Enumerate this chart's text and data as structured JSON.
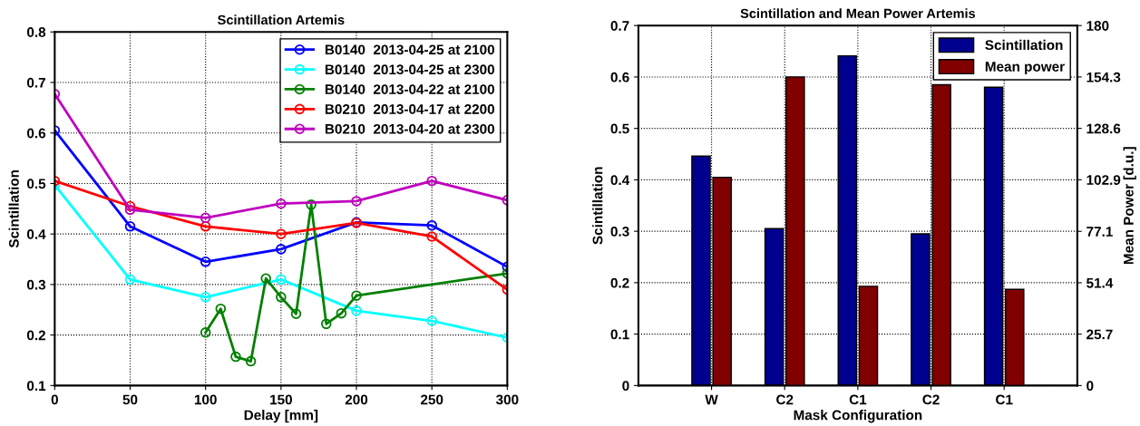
{
  "chart_data": [
    {
      "type": "line",
      "title": "Scintillation Artemis",
      "xlabel": "Delay [mm]",
      "ylabel": "Scintillation",
      "xlim": [
        0,
        300
      ],
      "xticks": [
        0,
        50,
        100,
        150,
        200,
        250,
        300
      ],
      "ylim": [
        0.1,
        0.8
      ],
      "yticks": [
        0.1,
        0.2,
        0.3,
        0.4,
        0.5,
        0.6,
        0.7,
        0.8
      ],
      "grid": true,
      "legend": "top right",
      "marker": "circle",
      "line_style": "solid",
      "series": [
        {
          "name": "B0140  2013-04-25 at 2100",
          "color": "#0000ff",
          "x": [
            0,
            50,
            100,
            150,
            200,
            250,
            300
          ],
          "values": [
            0.605,
            0.415,
            0.345,
            0.37,
            0.423,
            0.417,
            0.335
          ]
        },
        {
          "name": "B0140  2013-04-25 at 2300",
          "color": "#00ffff",
          "x": [
            0,
            50,
            100,
            150,
            200,
            250,
            300
          ],
          "values": [
            0.497,
            0.31,
            0.275,
            0.31,
            0.248,
            0.228,
            0.195
          ]
        },
        {
          "name": "B0140  2013-04-22 at 2100",
          "color": "#008000",
          "x": [
            100,
            110,
            120,
            130,
            140,
            150,
            160,
            170,
            180,
            190,
            200,
            300
          ],
          "values": [
            0.205,
            0.252,
            0.157,
            0.148,
            0.312,
            0.275,
            0.242,
            0.458,
            0.222,
            0.243,
            0.278,
            0.322
          ]
        },
        {
          "name": "B0210  2013-04-17 at 2200",
          "color": "#ff0000",
          "x": [
            0,
            50,
            100,
            150,
            200,
            250,
            300
          ],
          "values": [
            0.505,
            0.455,
            0.415,
            0.4,
            0.422,
            0.395,
            0.29
          ]
        },
        {
          "name": "B0210  2013-04-20 at 2300",
          "color": "#bf00bf",
          "x": [
            0,
            50,
            100,
            150,
            200,
            250,
            300
          ],
          "values": [
            0.677,
            0.448,
            0.432,
            0.46,
            0.465,
            0.505,
            0.467
          ]
        }
      ]
    },
    {
      "type": "bar",
      "title": "Scintillation and Mean Power Artemis",
      "xlabel": "Mask Configuration",
      "ylabel": "Scintillation",
      "y2label": "Mean Power [d.u.]",
      "categories": [
        "W",
        "C2",
        "C1",
        "C2",
        "C1"
      ],
      "ylim": [
        0,
        0.7
      ],
      "yticks": [
        0,
        0.1,
        0.2,
        0.3,
        0.4,
        0.5,
        0.6,
        0.7
      ],
      "y2lim": [
        0,
        180
      ],
      "y2ticks": [
        0,
        25.7,
        51.4,
        77.1,
        102.9,
        128.6,
        154.3,
        180
      ],
      "grid": true,
      "legend": "top right",
      "series": [
        {
          "name": "Scintillation",
          "color": "#00008f",
          "values": [
            0.446,
            0.305,
            0.641,
            0.295,
            0.58
          ]
        },
        {
          "name": "Mean power",
          "color": "#800000",
          "axis": "y2",
          "values": [
            104.1,
            154.3,
            49.6,
            150.4,
            48.1
          ]
        }
      ]
    }
  ]
}
